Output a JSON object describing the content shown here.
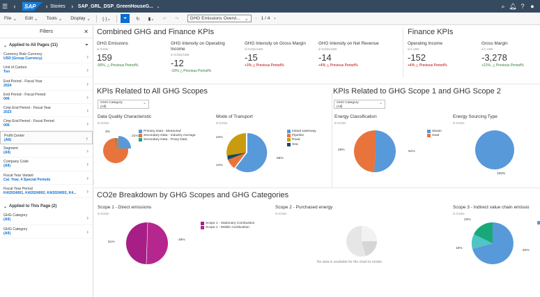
{
  "topbar": {
    "app": "Stories",
    "story": "SAP_GRL_DSP_GreenHouseG..."
  },
  "toolbar": {
    "file": "File",
    "edit": "Edit",
    "tools": "Tools",
    "display": "Display",
    "page_select": "GHG Emissions Overvi...",
    "page_count": "1 / 4"
  },
  "filters": {
    "title": "Filters",
    "section_all": "Applied to All Pages (11)",
    "section_page": "Applied to This Page (2)",
    "items": [
      {
        "label": "Currency Role Currency",
        "value": "USD (Group Currency)"
      },
      {
        "label": "Unit of Carbon",
        "value": "Ton"
      },
      {
        "label": "End Period - Fiscal Year",
        "value": "2024"
      },
      {
        "label": "End Period - Fiscal Period",
        "value": "006"
      },
      {
        "label": "Cmp End Period - Fiscal Year",
        "value": "2023"
      },
      {
        "label": "Cmp End Period - Fiscal Period",
        "value": "006"
      },
      {
        "label": "Profit Center",
        "value": "(All)"
      },
      {
        "label": "Segment",
        "value": "(All)"
      },
      {
        "label": "Company Code",
        "value": "(All)"
      },
      {
        "label": "Fiscal Year Variant",
        "value": "Cal. Year, 4 Special Periods"
      },
      {
        "label": "Fiscal Year Period",
        "value": "K4/2024001, K4/2024002, K4/2024003, K4..."
      }
    ],
    "page_items": [
      {
        "label": "GHG Category",
        "value": "(All)"
      },
      {
        "label": "GHG Category",
        "value": "(All)"
      }
    ]
  },
  "sections": {
    "combined": "Combined GHG and Finance KPIs",
    "finance": "Finance KPIs",
    "all_scopes": "KPIs Related to All GHG Scopes",
    "scope12": "KPIs Related to GHG Scope 1 and GHG Scope 2",
    "breakdown": "CO2e Breakdown by GHG Scopes and GHG Categories"
  },
  "kpis": [
    {
      "title": "GHG Emissions",
      "unit": "in tCO2e",
      "value": "159",
      "delta": "-90%, △ Previous Period%",
      "tone": "g"
    },
    {
      "title": "GHG Intensity on Operating Income",
      "unit": "in tCO2e/USD",
      "value": "-12",
      "delta": "-10%  △ Previous Period%",
      "tone": "g"
    },
    {
      "title": "GHG Intensity on Gross Margin",
      "unit": "in tCO2e/USD",
      "value": "-15",
      "delta": "+3%  △ Previous Period%",
      "tone": "r"
    },
    {
      "title": "GHG Intensity on Net Revenue",
      "unit": "in tCO2e/USD",
      "value": "-14",
      "delta": "+4%  △ Previous Period%",
      "tone": "r"
    },
    {
      "title": "Operating Income",
      "unit": "in k USD",
      "value": "-152",
      "delta": "+4%  △ Previous Period%",
      "tone": "r"
    },
    {
      "title": "Gross Margin",
      "unit": "in k USD",
      "value": "-3,278",
      "delta": "+21%, △ Previous Period%",
      "tone": "g"
    }
  ],
  "dropdowns": {
    "label": "GHG Category",
    "value": "(All)"
  },
  "charts": {
    "dq": {
      "title": "Data Quality Characteristic",
      "unit": "in tCO2e",
      "legend": [
        "Primary Data - Measured",
        "Secondary Data - Industry Average",
        "Secondary Data - Proxy Data"
      ],
      "labels": [
        "3%",
        "21%"
      ]
    },
    "mot": {
      "title": "Mode of Transport",
      "unit": "in tCO2e",
      "legend": [
        "Inland waterway",
        "Pipeline",
        "Road",
        "Sea"
      ],
      "labels": [
        "24%",
        "14%",
        "58%"
      ]
    },
    "ec": {
      "title": "Energy Classification",
      "unit": "in tCO2e",
      "legend": [
        "Steam",
        "Heat"
      ],
      "labels": [
        "49%",
        "51%"
      ]
    },
    "es": {
      "title": "Energy Sourcing Type",
      "unit": "in tCO2e",
      "labels": [
        "100%"
      ]
    },
    "s1": {
      "title": "Scope 1 - Direct emissions",
      "unit": "in tCO2e",
      "legend": [
        "Scope 1 - Stationary Combustion",
        "Scope 1 - Mobile Combustion"
      ],
      "labels": [
        "51%",
        "49%"
      ]
    },
    "s2": {
      "title": "Scope 2 - Purchased energy",
      "unit": "in tCO2e",
      "nodata": "No data is available for the chart to render."
    },
    "s3": {
      "title": "Scope 3 - Indirect value chain emissio",
      "unit": "in tCO2e",
      "labels": [
        "23%",
        "15%",
        "62%"
      ]
    }
  },
  "colors": {
    "shell": "#354a5f",
    "blue": "#5899da",
    "orange": "#e8743b",
    "green": "#19a979",
    "gold": "#c99b0f",
    "navy": "#14486e",
    "purple": "#a71e87",
    "teal": "#4fc5c5"
  }
}
